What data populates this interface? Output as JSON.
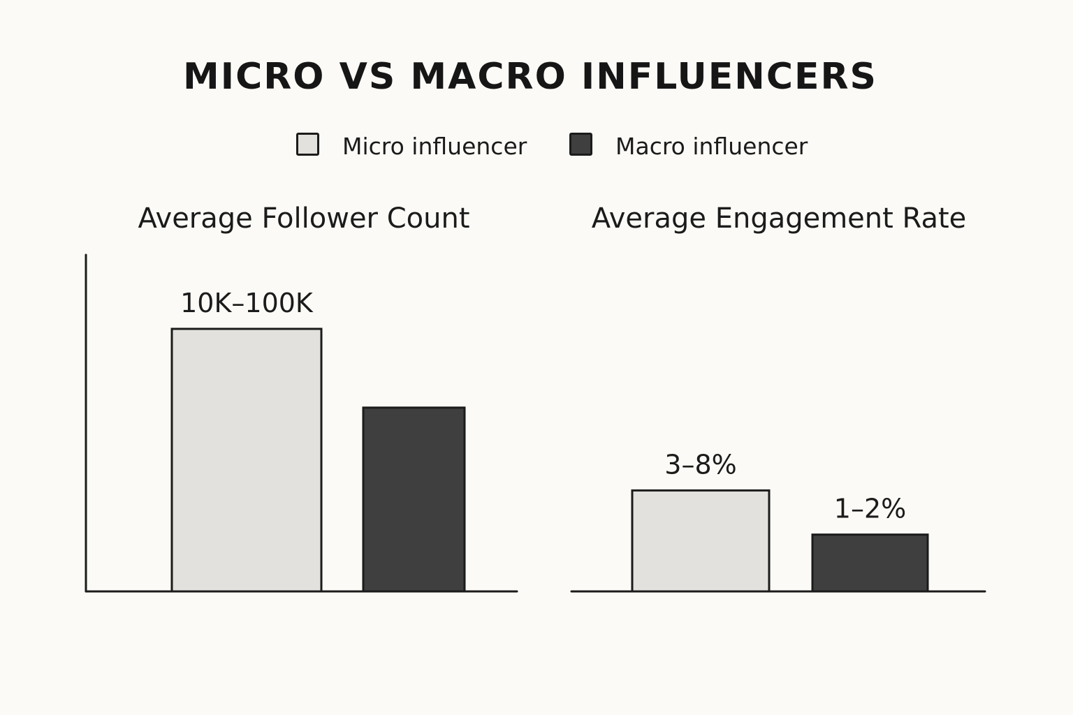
{
  "title": "MICRO VS MACRO INFLUENCERS",
  "legend": [
    {
      "label": "Micro influencer",
      "color": "#e3e1dd"
    },
    {
      "label": "Macro influencer",
      "color": "#3f3f3f"
    }
  ],
  "colors": {
    "micro": "#e3e1dd",
    "macro": "#3f3f3f",
    "stroke": "#1b1b1b",
    "background": "#fbfaf6"
  },
  "chart_data": [
    {
      "type": "bar",
      "title": "Average Follower Count",
      "categories": [
        "Micro influencer",
        "Macro influencer"
      ],
      "values": [
        100,
        70
      ],
      "labels": [
        "10K–100K",
        ""
      ],
      "ylim": [
        0,
        125
      ],
      "xlabel": "",
      "ylabel": "",
      "grid": false
    },
    {
      "type": "bar",
      "title": "Average Engagement Rate",
      "categories": [
        "Micro influencer",
        "Macro influencer"
      ],
      "values": [
        8,
        4.5
      ],
      "labels": [
        "3–8%",
        "1–2%"
      ],
      "ylim": [
        0,
        26
      ],
      "xlabel": "",
      "ylabel": "",
      "grid": false
    }
  ]
}
